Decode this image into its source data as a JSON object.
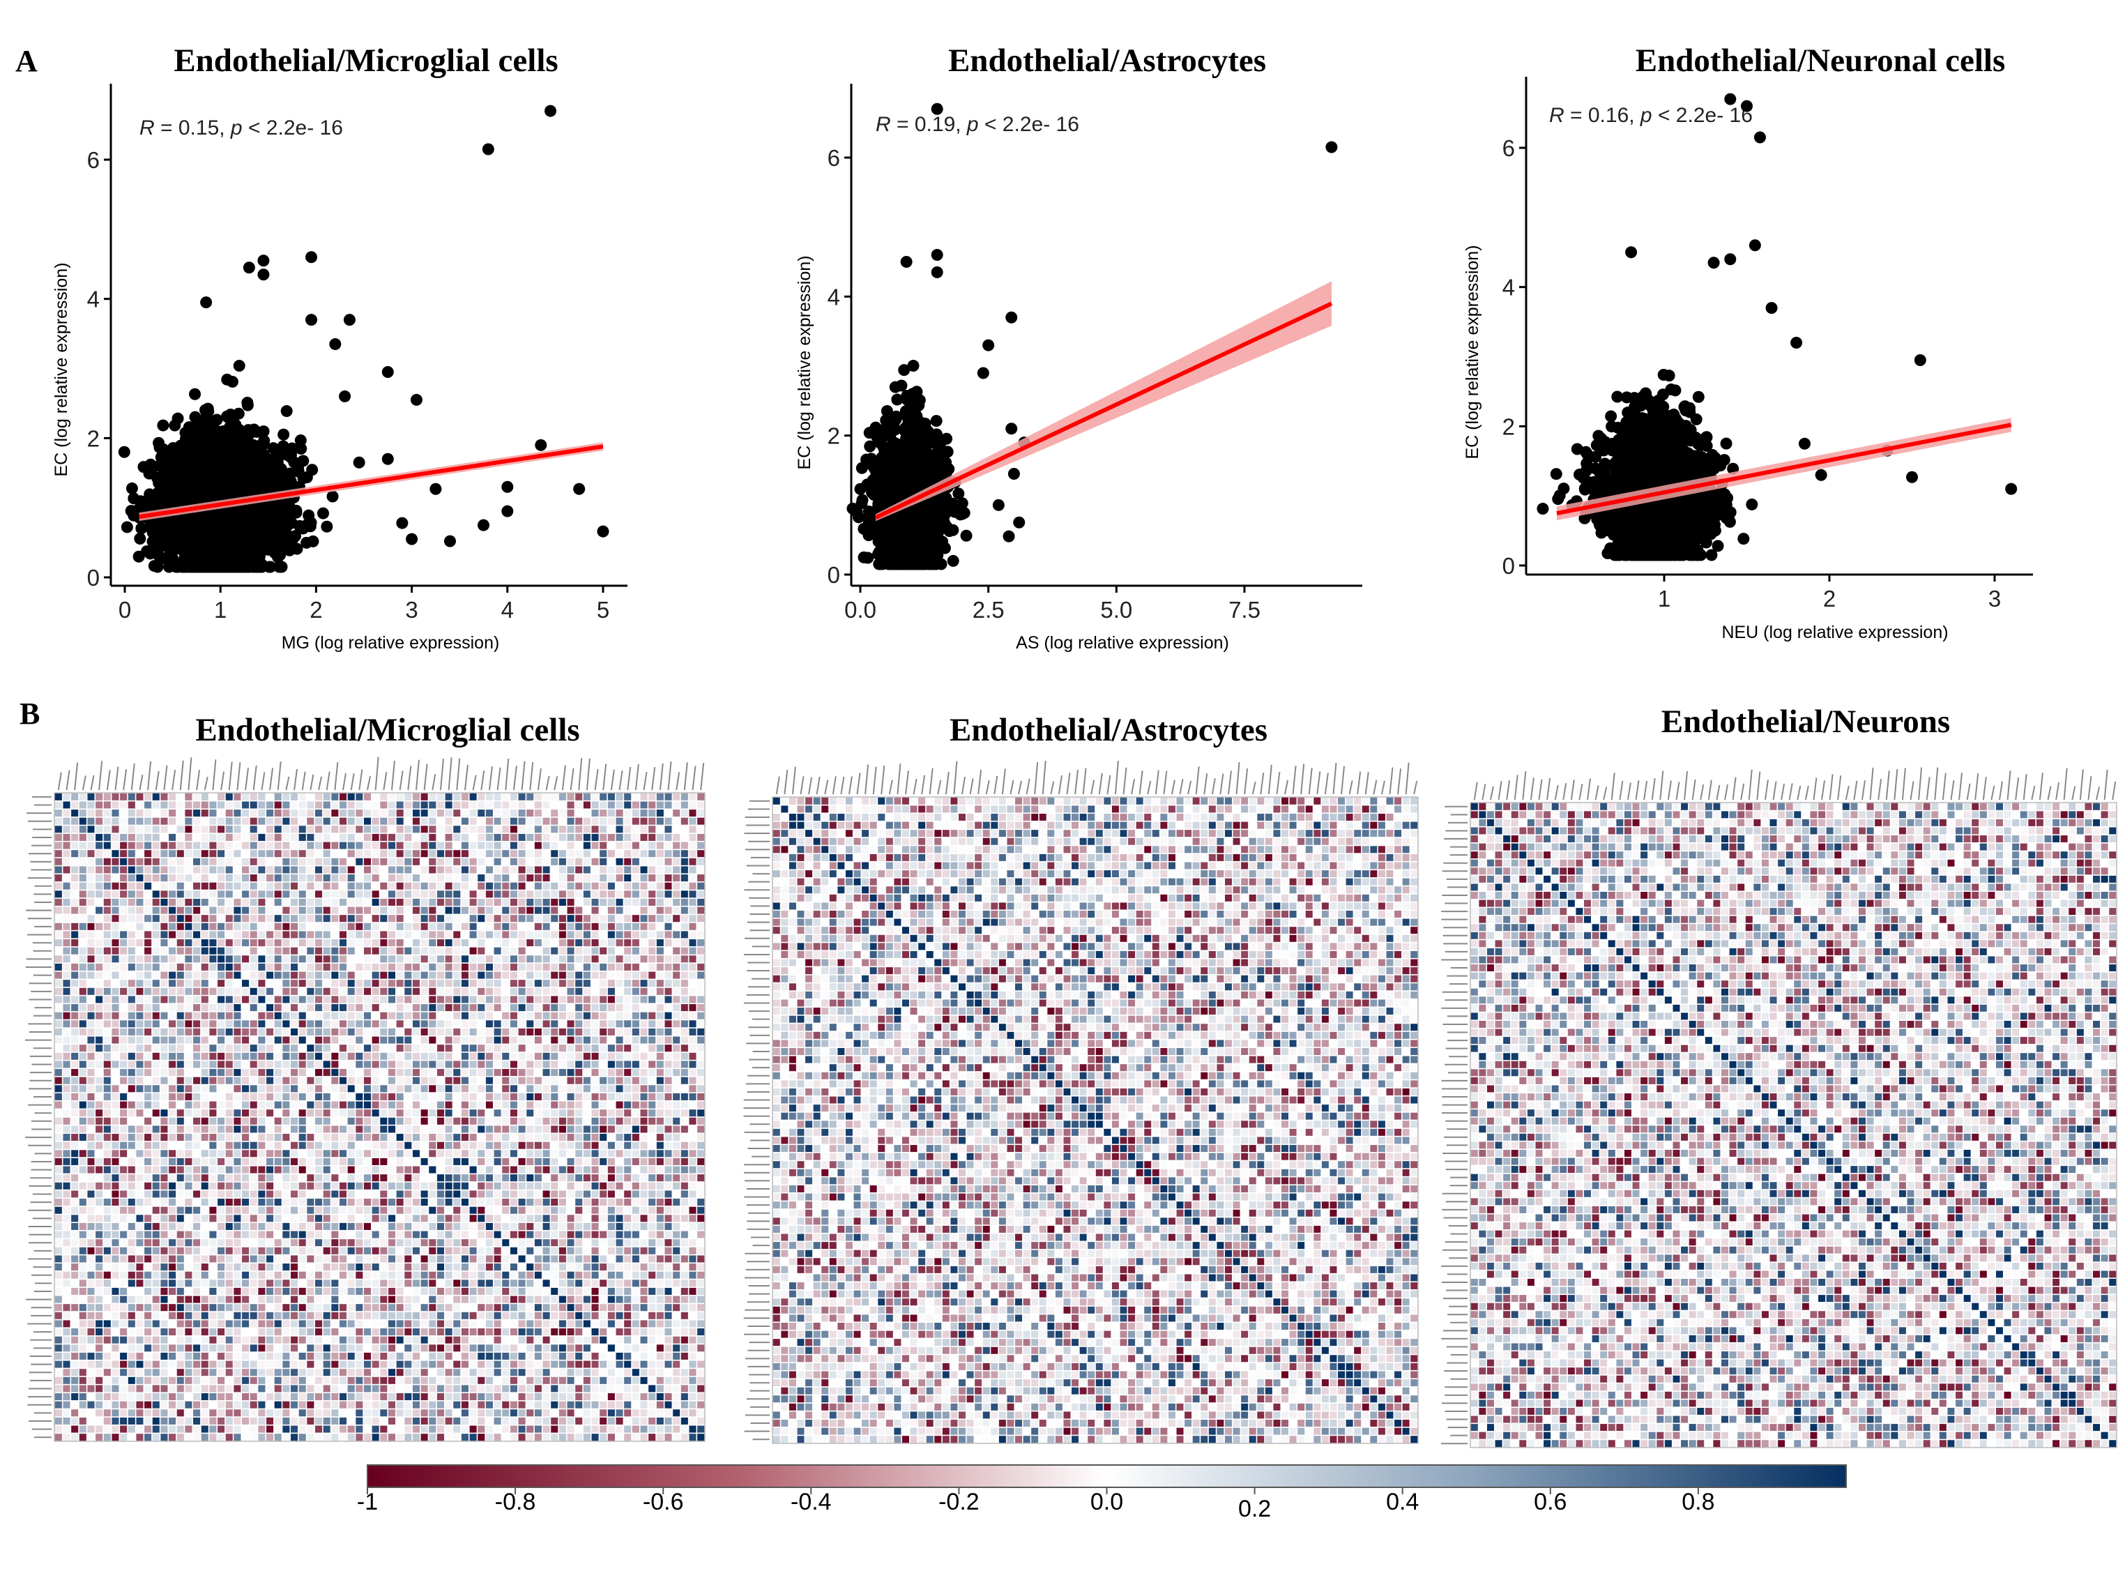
{
  "panel_labels": {
    "a": "A",
    "b": "B"
  },
  "chart_data": [
    {
      "type": "scatter",
      "title": "Endothelial/Microglial cells",
      "xlabel": "MG (log relative expression)",
      "ylabel": "EC (log relative expression)",
      "annotation": {
        "r": "R",
        "r_text": " = 0.15, ",
        "p": "p",
        "p_text": " < 2.2e- 16"
      },
      "xlim": [
        -0.15,
        5.3
      ],
      "ylim": [
        -0.05,
        6.9
      ],
      "xticks": [
        "0",
        "1",
        "2",
        "3",
        "4",
        "5"
      ],
      "yticks": [
        "0",
        "2",
        "4",
        "6"
      ],
      "cluster": {
        "x_mean": 1.0,
        "x_sd": 0.35,
        "y_mean": 1.0,
        "y_sd": 0.55,
        "n": 1800
      },
      "outliers": [
        [
          3.8,
          6.15
        ],
        [
          4.45,
          6.7
        ],
        [
          1.95,
          4.6
        ],
        [
          1.45,
          4.55
        ],
        [
          1.45,
          4.35
        ],
        [
          1.3,
          4.45
        ],
        [
          0.85,
          3.95
        ],
        [
          1.95,
          3.7
        ],
        [
          2.35,
          3.7
        ],
        [
          2.2,
          3.35
        ],
        [
          2.75,
          2.95
        ],
        [
          3.05,
          2.55
        ],
        [
          2.3,
          2.6
        ],
        [
          4.35,
          1.9
        ],
        [
          4.0,
          1.3
        ],
        [
          4.75,
          1.27
        ],
        [
          3.25,
          1.27
        ],
        [
          4.0,
          0.95
        ],
        [
          3.75,
          0.75
        ],
        [
          3.4,
          0.52
        ],
        [
          5.0,
          0.66
        ],
        [
          3.0,
          0.55
        ],
        [
          2.9,
          0.78
        ],
        [
          2.45,
          1.65
        ],
        [
          2.75,
          1.7
        ]
      ],
      "regression": {
        "x": [
          0.15,
          5.0
        ],
        "y": [
          0.87,
          1.88
        ],
        "ci": 0.06
      },
      "line_color": "#ff0000",
      "ci_color": "#f4a0a0",
      "point_color": "#000000"
    },
    {
      "type": "scatter",
      "title": "Endothelial/Astrocytes",
      "xlabel": "AS (log relative expression)",
      "ylabel": "EC (log relative expression)",
      "annotation": {
        "r": "R",
        "r_text": " = 0.19, ",
        "p": "p",
        "p_text": " < 2.2e- 16"
      },
      "xlim": [
        -0.4,
        10.0
      ],
      "ylim": [
        -0.05,
        6.9
      ],
      "xticks": [
        "0.0",
        "2.5",
        "5.0",
        "7.5"
      ],
      "yticks": [
        "0",
        "2",
        "4",
        "6"
      ],
      "cluster": {
        "x_mean": 0.95,
        "x_sd": 0.35,
        "y_mean": 1.05,
        "y_sd": 0.6,
        "n": 1200
      },
      "outliers": [
        [
          1.5,
          6.7
        ],
        [
          9.2,
          6.15
        ],
        [
          1.5,
          4.6
        ],
        [
          0.9,
          4.5
        ],
        [
          2.95,
          3.7
        ],
        [
          2.5,
          3.3
        ],
        [
          2.4,
          2.9
        ],
        [
          3.2,
          1.9
        ],
        [
          3.0,
          1.45
        ],
        [
          3.1,
          0.75
        ],
        [
          2.9,
          0.55
        ],
        [
          2.7,
          1.0
        ],
        [
          1.5,
          4.35
        ],
        [
          2.95,
          2.1
        ]
      ],
      "regression": {
        "x": [
          0.3,
          9.2
        ],
        "y": [
          0.82,
          3.9
        ],
        "ci_lo": 0.05,
        "ci_hi": 0.32
      },
      "line_color": "#ff0000",
      "ci_color": "#f4a0a0",
      "point_color": "#000000"
    },
    {
      "type": "scatter",
      "title": "Endothelial/Neuronal cells",
      "xlabel": "NEU (log relative expression)",
      "ylabel": "EC (log relative expression)",
      "annotation": {
        "r": "R",
        "r_text": " = 0.16, ",
        "p": "p",
        "p_text": " < 2.2e- 16"
      },
      "xlim": [
        0.15,
        3.25
      ],
      "ylim": [
        -0.05,
        6.9
      ],
      "xticks": [
        "1",
        "2",
        "3"
      ],
      "yticks": [
        "0",
        "2",
        "4",
        "6"
      ],
      "cluster": {
        "x_mean": 0.95,
        "x_sd": 0.17,
        "y_mean": 1.05,
        "y_sd": 0.55,
        "n": 1700
      },
      "outliers": [
        [
          1.4,
          6.7
        ],
        [
          1.5,
          6.6
        ],
        [
          1.58,
          6.15
        ],
        [
          1.55,
          4.6
        ],
        [
          1.4,
          4.4
        ],
        [
          1.3,
          4.35
        ],
        [
          0.8,
          4.5
        ],
        [
          1.65,
          3.7
        ],
        [
          1.8,
          3.2
        ],
        [
          2.55,
          2.95
        ],
        [
          1.85,
          1.75
        ],
        [
          2.35,
          1.65
        ],
        [
          2.5,
          1.27
        ],
        [
          3.1,
          1.1
        ],
        [
          1.95,
          1.3
        ]
      ],
      "regression": {
        "x": [
          0.35,
          3.1
        ],
        "y": [
          0.75,
          2.02
        ],
        "ci": 0.1
      },
      "line_color": "#ff0000",
      "ci_color": "#f4a0a0",
      "point_color": "#000000"
    },
    {
      "type": "heatmap",
      "title": "Endothelial/Microglial cells",
      "n": 80,
      "seed": 11
    },
    {
      "type": "heatmap",
      "title": "Endothelial/Astrocytes",
      "n": 80,
      "seed": 23
    },
    {
      "type": "heatmap",
      "title": "Endothelial/Neurons",
      "n": 80,
      "seed": 37
    },
    {
      "type": "colorbar",
      "range": [
        -1,
        1
      ],
      "ticks": [
        "-1",
        "-0.8",
        "-0.6",
        "-0.4",
        "-0.2",
        "0.0",
        "0.2",
        "0.4",
        "0.6",
        "0.8"
      ],
      "tick_values": [
        -1,
        -0.8,
        -0.6,
        -0.4,
        -0.2,
        0,
        0.2,
        0.4,
        0.6,
        0.8
      ],
      "colors": {
        "neg": "#67001f",
        "mid": "#ffffff",
        "pos": "#053061"
      }
    }
  ]
}
